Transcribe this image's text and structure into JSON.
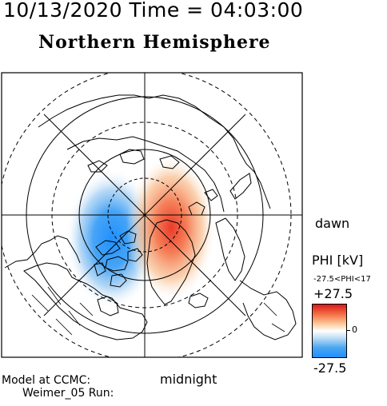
{
  "header": {
    "date_time": "10/13/2020 Time = 04:03:00",
    "hemisphere": "Northern Hemisphere"
  },
  "map": {
    "projection": "polar-stereographic",
    "center": "north-pole",
    "orientation": {
      "top": "noon",
      "right": "dawn",
      "bottom": "midnight",
      "left": "dusk"
    },
    "dawn_label": "dawn",
    "midnight_label": "midnight",
    "field": "electric potential",
    "pattern": "negative cell dusk side, positive cell dawn side",
    "colors": {
      "positive": "#d7191c",
      "negative": "#1e90ff",
      "zero": "#ffffff",
      "coastline": "#000000"
    }
  },
  "colorbar": {
    "title": "PHI [kV]",
    "range_label": "-27.5<PHI<17",
    "max_label": "+27.5",
    "zero_label": "0",
    "min_label": "-27.5"
  },
  "footer": {
    "model_label": "Model at CCMC:",
    "run_label": "Weimer_05 Run:"
  }
}
